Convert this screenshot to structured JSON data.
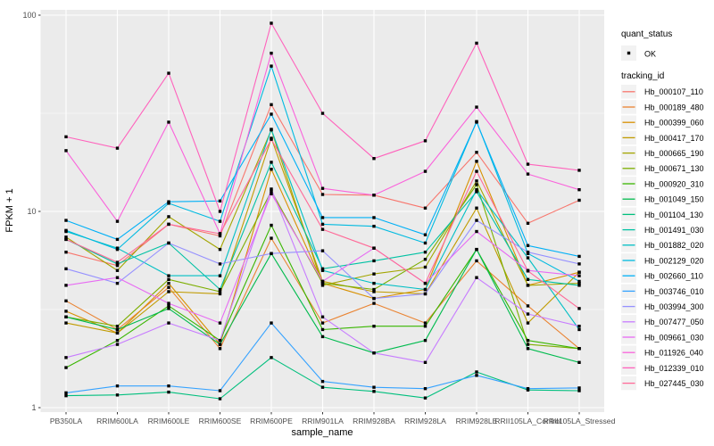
{
  "chart_data": {
    "type": "line",
    "title": "",
    "xlabel": "sample_name",
    "ylabel": "FPKM + 1",
    "y_scale": "log10",
    "y_tick_labels": [
      "1",
      "10",
      "100"
    ],
    "y_ticks": [
      1,
      10,
      100
    ],
    "y_minor_ticks": [
      3.1623,
      31.623
    ],
    "ylim": [
      1,
      110
    ],
    "grid": "on",
    "legend_position": "right",
    "panel_background": "#EBEBEB",
    "gridline_color": "#FFFFFF",
    "axis_text_color": "#4D4D4D",
    "marker_color": "#000000",
    "categories": [
      "PB350LA",
      "RRIM600LA",
      "RRIM600LE",
      "RRIM600SE",
      "RRIM600PE",
      "RRIM901LA",
      "RRIM928BA",
      "RRIM928LA",
      "RRIM928LE",
      "RRII105LA_Control",
      "RRII105LA_Stressed"
    ],
    "legend": {
      "quant_title": "quant_status",
      "quant_items": [
        "OK"
      ],
      "series_title": "tracking_id",
      "key_background": "#F2F2F2"
    },
    "series": [
      {
        "name": "Hb_000107_110",
        "color": "#F8766D",
        "values": [
          6.2,
          5.3,
          8.6,
          7.5,
          35.0,
          12.2,
          12.1,
          10.4,
          20.0,
          8.7,
          11.4
        ]
      },
      {
        "name": "Hb_000189_480",
        "color": "#EA8331",
        "values": [
          3.5,
          2.5,
          4.1,
          2.0,
          7.3,
          2.7,
          3.4,
          2.7,
          5.6,
          3.3,
          2.0
        ]
      },
      {
        "name": "Hb_000399_060",
        "color": "#D89000",
        "values": [
          3.1,
          2.4,
          4.3,
          2.1,
          16.4,
          4.3,
          3.6,
          4.0,
          18.0,
          4.2,
          4.9
        ]
      },
      {
        "name": "Hb_000417_170",
        "color": "#C09B00",
        "values": [
          2.7,
          2.4,
          3.9,
          3.8,
          23.6,
          4.4,
          3.9,
          3.8,
          10.4,
          2.7,
          4.9
        ]
      },
      {
        "name": "Hb_000665_190",
        "color": "#A3A500",
        "values": [
          7.4,
          5.0,
          9.4,
          6.4,
          26.0,
          4.2,
          4.8,
          5.2,
          14.3,
          4.2,
          4.3
        ]
      },
      {
        "name": "Hb_000671_130",
        "color": "#7CAE00",
        "values": [
          2.9,
          2.6,
          4.5,
          3.9,
          12.7,
          4.3,
          4.0,
          5.7,
          13.7,
          2.1,
          2.0
        ]
      },
      {
        "name": "Hb_000920_310",
        "color": "#39B600",
        "values": [
          1.6,
          2.2,
          3.3,
          2.2,
          8.5,
          2.5,
          2.6,
          2.6,
          6.4,
          2.2,
          2.0
        ]
      },
      {
        "name": "Hb_001049_150",
        "color": "#00BB4E",
        "values": [
          2.9,
          2.5,
          3.2,
          2.1,
          6.1,
          2.3,
          1.9,
          2.2,
          6.4,
          2.0,
          1.7
        ]
      },
      {
        "name": "Hb_001104_130",
        "color": "#00BF7D",
        "values": [
          1.15,
          1.16,
          1.2,
          1.11,
          1.8,
          1.27,
          1.21,
          1.12,
          1.52,
          1.23,
          1.22
        ]
      },
      {
        "name": "Hb_001491_030",
        "color": "#00C1A3",
        "values": [
          7.2,
          5.4,
          6.9,
          4.0,
          17.8,
          5.1,
          5.6,
          6.2,
          12.6,
          4.5,
          4.2
        ]
      },
      {
        "name": "Hb_001882_020",
        "color": "#00BFC4",
        "values": [
          7.9,
          6.5,
          4.7,
          4.7,
          26.2,
          5.0,
          4.3,
          4.0,
          12.9,
          5.8,
          2.5
        ]
      },
      {
        "name": "Hb_002129_020",
        "color": "#00BAE0",
        "values": [
          8.0,
          6.4,
          11.0,
          8.9,
          55.0,
          8.6,
          8.4,
          6.9,
          28.7,
          6.1,
          4.4
        ]
      },
      {
        "name": "Hb_002660_110",
        "color": "#00B0F6",
        "values": [
          9.0,
          7.2,
          11.2,
          11.3,
          31.3,
          9.3,
          9.3,
          7.6,
          28.5,
          6.7,
          5.9
        ]
      },
      {
        "name": "Hb_003746_010",
        "color": "#35A2FF",
        "values": [
          1.19,
          1.29,
          1.29,
          1.22,
          2.7,
          1.36,
          1.27,
          1.25,
          1.46,
          1.25,
          1.26
        ]
      },
      {
        "name": "Hb_003994_300",
        "color": "#9590FF",
        "values": [
          5.1,
          4.3,
          6.9,
          5.4,
          6.1,
          6.3,
          3.6,
          3.8,
          9.0,
          6.2,
          5.4
        ]
      },
      {
        "name": "Hb_007477_050",
        "color": "#C77CFF",
        "values": [
          1.8,
          2.1,
          2.7,
          2.2,
          13.0,
          2.9,
          1.9,
          1.7,
          4.6,
          3.0,
          2.6
        ]
      },
      {
        "name": "Hb_009661_030",
        "color": "#E76BF3",
        "values": [
          4.2,
          4.6,
          3.4,
          2.7,
          12.3,
          4.4,
          6.5,
          4.3,
          7.9,
          5.0,
          4.7
        ]
      },
      {
        "name": "Hb_011926_040",
        "color": "#FA62DB",
        "values": [
          20.4,
          8.9,
          28.5,
          7.7,
          64.0,
          13.1,
          12.1,
          16.0,
          34.0,
          15.5,
          12.9
        ]
      },
      {
        "name": "Hb_012339_010",
        "color": "#FF62BC",
        "values": [
          24.0,
          21.0,
          50.6,
          10.0,
          91.0,
          31.6,
          18.6,
          22.9,
          72.0,
          17.4,
          16.2
        ]
      },
      {
        "name": "Hb_027445_030",
        "color": "#FF6A98",
        "values": [
          7.2,
          5.5,
          8.6,
          7.7,
          23.3,
          8.1,
          6.5,
          4.3,
          16.0,
          4.97,
          3.2
        ]
      }
    ]
  }
}
